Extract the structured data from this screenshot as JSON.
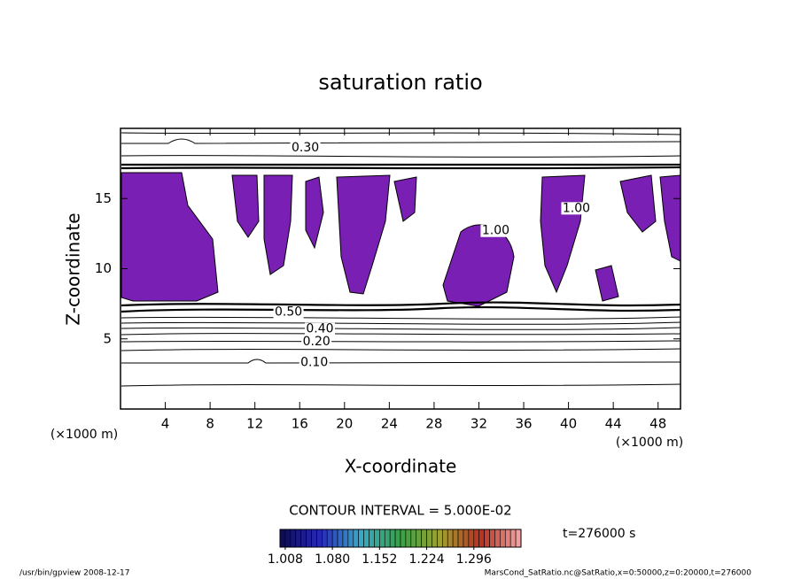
{
  "chart_data": {
    "type": "contour",
    "title": "saturation ratio",
    "xlabel": "X-coordinate",
    "ylabel": "Z-coordinate",
    "xunit": "(×1000 m)",
    "yunit": "(×1000 m)",
    "xlim": [
      0,
      50
    ],
    "xticks": [
      4,
      8,
      12,
      16,
      20,
      24,
      28,
      32,
      36,
      40,
      44,
      48
    ],
    "ylim": [
      0,
      20
    ],
    "yticks": [
      5,
      10,
      15
    ],
    "annotations": [
      {
        "text": "0.30",
        "x": 16.5,
        "y": 18.6
      },
      {
        "text": "0.10",
        "x": 17.3,
        "y": 3.3
      },
      {
        "text": "0.20",
        "x": 17.5,
        "y": 4.8
      },
      {
        "text": "0.40",
        "x": 17.8,
        "y": 5.7
      },
      {
        "text": "0.50",
        "x": 15.0,
        "y": 6.9
      },
      {
        "text": "1.00",
        "x": 33.5,
        "y": 12.7
      },
      {
        "text": "1.00",
        "x": 40.7,
        "y": 14.3
      }
    ],
    "contour_interval": "CONTOUR INTERVAL = 5.000E-02",
    "time_label": "t=276000 s",
    "colorbar": {
      "lim": [
        1.0,
        1.368
      ],
      "ticks": [
        {
          "value": 1.008,
          "label": "1.008"
        },
        {
          "value": 1.08,
          "label": "1.080"
        },
        {
          "value": 1.152,
          "label": "1.152"
        },
        {
          "value": 1.224,
          "label": "1.224"
        },
        {
          "value": 1.296,
          "label": "1.296"
        }
      ],
      "colors": [
        "#0c0c50",
        "#2828b8",
        "#3aa8c8",
        "#38a048",
        "#a0a030",
        "#b83020",
        "#f4a8a8"
      ]
    },
    "footer_left": "/usr/bin/gpview  2008-12-17",
    "footer_right": "MarsCond_SatRatio.nc@SatRatio,x=0:50000,z=0:20000,t=276000"
  }
}
